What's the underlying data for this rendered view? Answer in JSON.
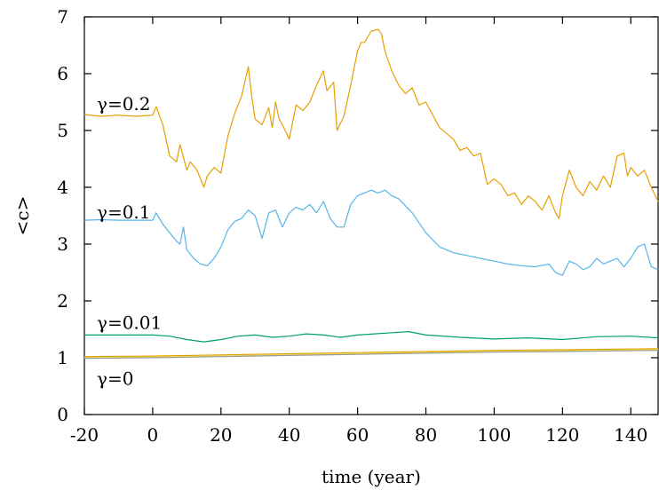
{
  "chart_data": {
    "type": "line",
    "title": "",
    "xlabel": "time (year)",
    "ylabel": "<c>",
    "xlim": [
      -20,
      148
    ],
    "ylim": [
      0,
      7
    ],
    "xticks": [
      -20,
      0,
      20,
      40,
      60,
      80,
      100,
      120,
      140
    ],
    "yticks": [
      0,
      1,
      2,
      3,
      4,
      5,
      6,
      7
    ],
    "grid": false,
    "legend": "inline labels",
    "series": [
      {
        "name": "γ=0.2",
        "color": "#e69f00",
        "label_anchor": [
          -20,
          5.45
        ],
        "x": [
          -20,
          -15,
          -10,
          -5,
          0,
          1,
          3,
          5,
          7,
          8,
          10,
          11,
          13,
          15,
          16,
          18,
          20,
          22,
          24,
          26,
          28,
          29,
          30,
          32,
          34,
          35,
          36,
          37,
          38,
          40,
          42,
          44,
          46,
          48,
          50,
          51,
          53,
          54,
          56,
          58,
          60,
          61,
          62,
          64,
          66,
          67,
          68,
          70,
          72,
          74,
          76,
          78,
          80,
          84,
          88,
          90,
          92,
          94,
          96,
          98,
          100,
          102,
          104,
          106,
          108,
          110,
          112,
          114,
          116,
          118,
          119,
          120,
          122,
          124,
          126,
          128,
          130,
          132,
          134,
          136,
          138,
          139,
          140,
          142,
          144,
          146,
          148
        ],
        "y": [
          5.28,
          5.25,
          5.27,
          5.25,
          5.27,
          5.42,
          5.1,
          4.55,
          4.45,
          4.75,
          4.3,
          4.45,
          4.3,
          4.0,
          4.2,
          4.35,
          4.25,
          4.9,
          5.3,
          5.6,
          6.12,
          5.6,
          5.2,
          5.1,
          5.4,
          5.05,
          5.5,
          5.2,
          5.1,
          4.85,
          5.45,
          5.35,
          5.5,
          5.8,
          6.05,
          5.7,
          5.85,
          5.0,
          5.25,
          5.8,
          6.4,
          6.55,
          6.55,
          6.75,
          6.78,
          6.7,
          6.4,
          6.05,
          5.8,
          5.65,
          5.75,
          5.45,
          5.5,
          5.05,
          4.85,
          4.65,
          4.7,
          4.55,
          4.6,
          4.05,
          4.15,
          4.05,
          3.85,
          3.9,
          3.7,
          3.85,
          3.75,
          3.6,
          3.85,
          3.55,
          3.45,
          3.85,
          4.3,
          4.0,
          3.85,
          4.1,
          3.95,
          4.2,
          4.0,
          4.55,
          4.6,
          4.2,
          4.35,
          4.2,
          4.3,
          4.0,
          3.75
        ]
      },
      {
        "name": "γ=0.1",
        "color": "#56b4e9",
        "label_anchor": [
          -20,
          3.55
        ],
        "x": [
          -20,
          -15,
          -10,
          -5,
          0,
          1,
          3,
          5,
          7,
          8,
          9,
          10,
          12,
          14,
          16,
          18,
          20,
          22,
          24,
          26,
          28,
          30,
          32,
          34,
          36,
          38,
          40,
          42,
          44,
          46,
          48,
          50,
          52,
          54,
          56,
          58,
          60,
          62,
          64,
          66,
          68,
          70,
          72,
          76,
          80,
          84,
          88,
          92,
          96,
          100,
          104,
          108,
          112,
          116,
          118,
          120,
          122,
          124,
          126,
          128,
          130,
          132,
          134,
          136,
          138,
          140,
          142,
          144,
          146,
          148
        ],
        "y": [
          3.42,
          3.43,
          3.42,
          3.42,
          3.42,
          3.55,
          3.35,
          3.2,
          3.05,
          3.0,
          3.3,
          2.9,
          2.75,
          2.65,
          2.62,
          2.75,
          2.95,
          3.25,
          3.4,
          3.45,
          3.6,
          3.5,
          3.1,
          3.55,
          3.6,
          3.3,
          3.55,
          3.65,
          3.6,
          3.7,
          3.55,
          3.75,
          3.45,
          3.3,
          3.3,
          3.7,
          3.85,
          3.9,
          3.95,
          3.9,
          3.95,
          3.85,
          3.8,
          3.55,
          3.2,
          2.95,
          2.85,
          2.8,
          2.75,
          2.7,
          2.65,
          2.62,
          2.6,
          2.65,
          2.5,
          2.45,
          2.7,
          2.65,
          2.55,
          2.6,
          2.75,
          2.65,
          2.7,
          2.75,
          2.6,
          2.75,
          2.95,
          3.0,
          2.6,
          2.55
        ]
      },
      {
        "name": "γ=0.01",
        "color": "#009e73",
        "label_anchor": [
          -20,
          1.6
        ],
        "x": [
          -20,
          -10,
          0,
          5,
          10,
          15,
          20,
          25,
          30,
          35,
          40,
          45,
          50,
          55,
          60,
          65,
          70,
          75,
          80,
          90,
          100,
          110,
          120,
          130,
          140,
          148
        ],
        "y": [
          1.4,
          1.4,
          1.4,
          1.38,
          1.32,
          1.28,
          1.32,
          1.38,
          1.4,
          1.36,
          1.38,
          1.42,
          1.4,
          1.36,
          1.4,
          1.42,
          1.44,
          1.46,
          1.4,
          1.36,
          1.33,
          1.35,
          1.32,
          1.37,
          1.38,
          1.35
        ]
      },
      {
        "name": "",
        "color": "#e69f00",
        "x": [
          -20,
          0,
          20,
          40,
          60,
          80,
          100,
          120,
          148
        ],
        "y": [
          1.02,
          1.03,
          1.05,
          1.07,
          1.09,
          1.11,
          1.13,
          1.14,
          1.16
        ]
      },
      {
        "name": "",
        "color": "#f0e442",
        "x": [
          -20,
          0,
          20,
          40,
          60,
          80,
          100,
          120,
          148
        ],
        "y": [
          1.0,
          1.01,
          1.03,
          1.05,
          1.07,
          1.09,
          1.11,
          1.12,
          1.14
        ]
      },
      {
        "name": "γ=0",
        "color": "#999999",
        "label_anchor": [
          -20,
          0.62
        ],
        "x": [
          -20,
          0,
          20,
          40,
          60,
          80,
          100,
          120,
          148
        ],
        "y": [
          0.99,
          1.0,
          1.02,
          1.04,
          1.06,
          1.08,
          1.1,
          1.11,
          1.13
        ]
      }
    ]
  }
}
